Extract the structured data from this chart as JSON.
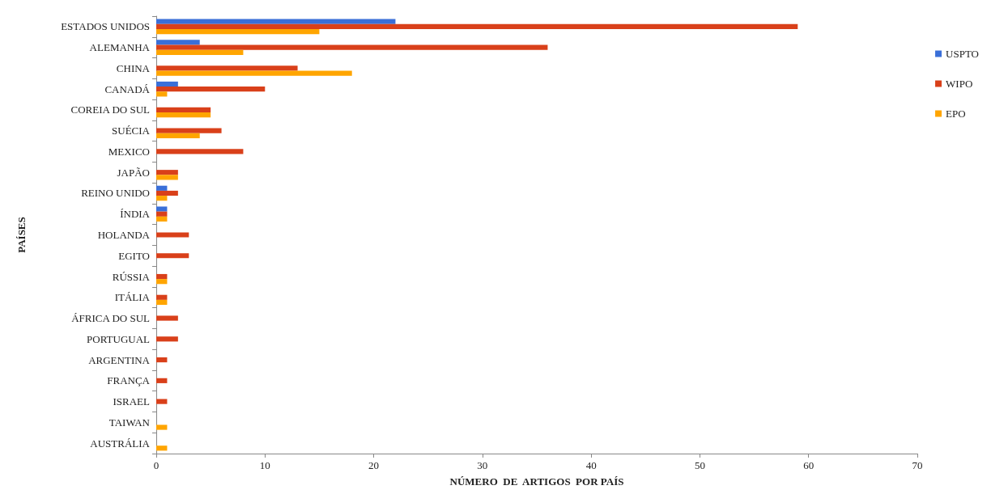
{
  "chart_data": {
    "type": "bar",
    "orientation": "horizontal",
    "xlabel": "NÚMERO  DE  ARTIGOS  POR PAÍS",
    "ylabel": "PAÍSES",
    "categories": [
      "ESTADOS UNIDOS",
      "ALEMANHA",
      "CHINA",
      "CANADÁ",
      "COREIA DO SUL",
      "SUÉCIA",
      "MEXICO",
      "JAPÃO",
      "REINO UNIDO",
      "ÍNDIA",
      "HOLANDA",
      "EGITO",
      "RÚSSIA",
      "ITÁLIA",
      "ÁFRICA DO SUL",
      "PORTUGUAL",
      "ARGENTINA",
      "FRANÇA",
      "ISRAEL",
      "TAIWAN",
      "AUSTRÁLIA"
    ],
    "series": [
      {
        "name": "USPTO",
        "color": "#3a6fd8",
        "values": [
          22,
          4,
          0,
          2,
          0,
          0,
          0,
          0,
          1,
          1,
          0,
          0,
          0,
          0,
          0,
          0,
          0,
          0,
          0,
          0,
          0
        ]
      },
      {
        "name": "WIPO",
        "color": "#d9401a",
        "values": [
          59,
          36,
          13,
          10,
          5,
          6,
          8,
          2,
          2,
          1,
          3,
          3,
          1,
          1,
          2,
          2,
          1,
          1,
          1,
          0,
          0
        ]
      },
      {
        "name": "EPO",
        "color": "#ffa500",
        "values": [
          15,
          8,
          18,
          1,
          5,
          4,
          0,
          2,
          1,
          1,
          0,
          0,
          1,
          1,
          0,
          0,
          0,
          0,
          0,
          1,
          1
        ]
      }
    ],
    "xlim": [
      0,
      70
    ],
    "xticks": [
      0,
      10,
      20,
      30,
      40,
      50,
      60,
      70
    ],
    "grid": false,
    "legend": "right"
  }
}
